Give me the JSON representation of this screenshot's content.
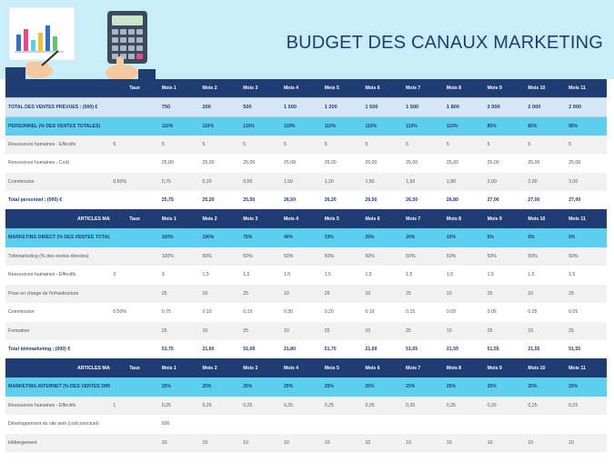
{
  "title": "BUDGET DES CANAUX MARKETING",
  "colors": {
    "navy": "#1f3c73",
    "cyan": "#5ccfee",
    "banner": "#c9eef9",
    "highlight": "#d6e6f7"
  },
  "illustration": "hand-with-calculator-and-chart",
  "sections": [
    {
      "header": {
        "label": "",
        "taux": "Taux",
        "months": [
          "Mois 1",
          "Mois 2",
          "Mois 3",
          "Mois 4",
          "Mois 5",
          "Mois 6",
          "Mois 7",
          "Mois 8",
          "Mois 9",
          "Mois 10",
          "Mois 11"
        ]
      },
      "rows": [
        {
          "type": "hl",
          "label": "TOTAL DES VENTES PRÉVUES : (000) €",
          "taux": "",
          "values": [
            "750",
            "200",
            "500",
            "1 500",
            "1 200",
            "1 500",
            "1 500",
            "1 800",
            "2 000",
            "2 000",
            "2 000"
          ]
        },
        {
          "type": "pct",
          "label": "PERSONNEL (% DES VENTES TOTALES)",
          "taux": "",
          "values": [
            "110%",
            "110%",
            "110%",
            "110%",
            "110%",
            "110%",
            "110%",
            "110%",
            "85%",
            "85%",
            "85%"
          ]
        },
        {
          "type": "row",
          "label": "Ressources humaines - Effectifs",
          "taux": "5",
          "values": [
            "5",
            "5",
            "5",
            "5",
            "5",
            "5",
            "5",
            "5",
            "5",
            "5",
            "5"
          ]
        },
        {
          "type": "row",
          "label": "Ressources humaines - Coût",
          "taux": "",
          "values": [
            "25,00",
            "25,00",
            "25,00",
            "25,00",
            "25,00",
            "25,00",
            "25,00",
            "25,00",
            "25,00",
            "25,00",
            "25,00"
          ]
        },
        {
          "type": "row",
          "label": "Commission",
          "taux": "0,50%",
          "values": [
            "0,75",
            "0,20",
            "0,50",
            "1,50",
            "1,20",
            "1,50",
            "1,50",
            "1,80",
            "2,00",
            "2,00",
            "2,00"
          ]
        },
        {
          "type": "tot",
          "label": "Total personnel : (000) €",
          "taux": "",
          "values": [
            "25,75",
            "25,20",
            "25,50",
            "26,50",
            "26,20",
            "26,50",
            "26,50",
            "26,80",
            "27,00",
            "27,00",
            "27,00"
          ]
        }
      ]
    },
    {
      "header": {
        "label": "ARTICLES MARKETING DIRECT",
        "taux": "Taux",
        "months": [
          "Mois 1",
          "Mois 2",
          "Mois 3",
          "Mois 4",
          "Mois 5",
          "Mois 6",
          "Mois 7",
          "Mois 8",
          "Mois 9",
          "Mois 10",
          "Mois 11"
        ]
      },
      "rows": [
        {
          "type": "pct",
          "label": "MARKETING DIRECT (% DES VENTES TOTALES)",
          "taux": "",
          "values": [
            "100%",
            "100%",
            "75%",
            "40%",
            "33%",
            "25%",
            "20%",
            "10%",
            "5%",
            "5%",
            "5%"
          ]
        },
        {
          "type": "row",
          "label": "Télémarketing (% des ventes directes)",
          "taux": "",
          "values": [
            "100%",
            "50%",
            "50%",
            "50%",
            "50%",
            "50%",
            "50%",
            "50%",
            "50%",
            "50%",
            "50%"
          ]
        },
        {
          "type": "row",
          "label": "Ressources humaines - Effectifs",
          "taux": "3",
          "values": [
            "3",
            "1,5",
            "1,5",
            "1,5",
            "1,5",
            "1,5",
            "1,5",
            "1,5",
            "1,5",
            "1,5",
            "1,5"
          ]
        },
        {
          "type": "row",
          "label": "Prise en charge de l'infrastructure",
          "taux": "",
          "values": [
            "25",
            "10",
            "25",
            "10",
            "25",
            "10",
            "25",
            "10",
            "25",
            "10",
            "25"
          ]
        },
        {
          "type": "row",
          "label": "Commission",
          "taux": "0,50%",
          "values": [
            "0,75",
            "0,10",
            "0,19",
            "0,30",
            "0,20",
            "0,19",
            "0,15",
            "0,09",
            "0,05",
            "0,05",
            "0,05"
          ]
        },
        {
          "type": "row",
          "label": "Formation",
          "taux": "",
          "values": [
            "25",
            "10",
            "25",
            "10",
            "25",
            "10",
            "25",
            "10",
            "25",
            "10",
            "25"
          ]
        },
        {
          "type": "tot",
          "label": "Total télémarketing : (000) €",
          "taux": "",
          "values": [
            "53,75",
            "21,60",
            "51,69",
            "21,80",
            "51,70",
            "21,69",
            "51,65",
            "21,59",
            "51,55",
            "21,55",
            "51,55"
          ]
        }
      ]
    },
    {
      "header": {
        "label": "ARTICLES MARKETING INTERNET",
        "taux": "Taux",
        "months": [
          "Mois 1",
          "Mois 2",
          "Mois 3",
          "Mois 4",
          "Mois 5",
          "Mois 6",
          "Mois 7",
          "Mois 8",
          "Mois 9",
          "Mois 10",
          "Mois 11"
        ]
      },
      "rows": [
        {
          "type": "pct",
          "label": "MARKETING INTERNET (% DES VENTES DIRECTES)",
          "taux": "",
          "values": [
            "25%",
            "25%",
            "25%",
            "25%",
            "25%",
            "25%",
            "25%",
            "25%",
            "25%",
            "25%",
            "25%"
          ]
        },
        {
          "type": "row",
          "label": "Ressources humaines - Effectifs",
          "taux": "1",
          "values": [
            "0,25",
            "0,25",
            "0,25",
            "0,25",
            "0,25",
            "0,25",
            "0,25",
            "0,25",
            "0,25",
            "0,25",
            "0,25"
          ]
        },
        {
          "type": "row",
          "label": "Développement du site web (coût ponctuel)",
          "taux": "",
          "values": [
            "500",
            "",
            "",
            "",
            "",
            "",
            "",
            "",
            "",
            "",
            ""
          ]
        },
        {
          "type": "row",
          "label": "Hébergement",
          "taux": "",
          "values": [
            "10",
            "10",
            "10",
            "10",
            "10",
            "10",
            "10",
            "10",
            "10",
            "10",
            "10"
          ]
        }
      ]
    }
  ]
}
